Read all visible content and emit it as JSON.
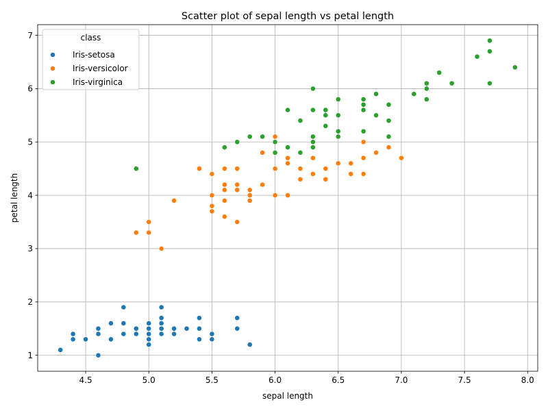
{
  "chart_data": {
    "type": "scatter",
    "title": "Scatter plot of sepal length vs petal length",
    "xlabel": "sepal length",
    "ylabel": "petal length",
    "xlim": [
      4.12,
      8.08
    ],
    "ylim": [
      0.7,
      7.2
    ],
    "xticks": [
      "4.5",
      "5.0",
      "5.5",
      "6.0",
      "6.5",
      "7.0",
      "7.5",
      "8.0"
    ],
    "yticks": [
      "1",
      "2",
      "3",
      "4",
      "5",
      "6",
      "7"
    ],
    "grid": true,
    "legend": {
      "title": "class",
      "location": "top-left"
    },
    "series": [
      {
        "name": "Iris-setosa",
        "color": "#1f77b4",
        "points": [
          [
            4.3,
            1.1
          ],
          [
            4.4,
            1.3
          ],
          [
            4.4,
            1.4
          ],
          [
            4.5,
            1.3
          ],
          [
            4.6,
            1.0
          ],
          [
            4.6,
            1.4
          ],
          [
            4.6,
            1.5
          ],
          [
            4.7,
            1.3
          ],
          [
            4.7,
            1.6
          ],
          [
            4.8,
            1.4
          ],
          [
            4.8,
            1.6
          ],
          [
            4.8,
            1.9
          ],
          [
            4.9,
            1.4
          ],
          [
            4.9,
            1.5
          ],
          [
            5.0,
            1.2
          ],
          [
            5.0,
            1.3
          ],
          [
            5.0,
            1.4
          ],
          [
            5.0,
            1.5
          ],
          [
            5.0,
            1.6
          ],
          [
            5.1,
            1.4
          ],
          [
            5.1,
            1.5
          ],
          [
            5.1,
            1.6
          ],
          [
            5.1,
            1.7
          ],
          [
            5.1,
            1.9
          ],
          [
            5.2,
            1.4
          ],
          [
            5.2,
            1.5
          ],
          [
            5.3,
            1.5
          ],
          [
            5.4,
            1.3
          ],
          [
            5.4,
            1.5
          ],
          [
            5.4,
            1.7
          ],
          [
            5.5,
            1.3
          ],
          [
            5.5,
            1.4
          ],
          [
            5.7,
            1.5
          ],
          [
            5.7,
            1.7
          ],
          [
            5.8,
            1.2
          ]
        ]
      },
      {
        "name": "Iris-versicolor",
        "color": "#ff7f0e",
        "points": [
          [
            4.9,
            3.3
          ],
          [
            5.0,
            3.3
          ],
          [
            5.0,
            3.5
          ],
          [
            5.1,
            3.0
          ],
          [
            5.2,
            3.9
          ],
          [
            5.4,
            4.5
          ],
          [
            5.5,
            3.7
          ],
          [
            5.5,
            3.8
          ],
          [
            5.5,
            4.0
          ],
          [
            5.5,
            4.4
          ],
          [
            5.6,
            3.6
          ],
          [
            5.6,
            3.9
          ],
          [
            5.6,
            4.1
          ],
          [
            5.6,
            4.2
          ],
          [
            5.6,
            4.5
          ],
          [
            5.7,
            3.5
          ],
          [
            5.7,
            4.1
          ],
          [
            5.7,
            4.2
          ],
          [
            5.7,
            4.5
          ],
          [
            5.8,
            3.9
          ],
          [
            5.8,
            4.0
          ],
          [
            5.8,
            4.1
          ],
          [
            5.9,
            4.2
          ],
          [
            5.9,
            4.8
          ],
          [
            6.0,
            4.0
          ],
          [
            6.0,
            4.5
          ],
          [
            6.0,
            5.1
          ],
          [
            6.1,
            4.0
          ],
          [
            6.1,
            4.6
          ],
          [
            6.1,
            4.7
          ],
          [
            6.2,
            4.3
          ],
          [
            6.2,
            4.5
          ],
          [
            6.3,
            4.4
          ],
          [
            6.3,
            4.7
          ],
          [
            6.4,
            4.3
          ],
          [
            6.4,
            4.5
          ],
          [
            6.5,
            4.6
          ],
          [
            6.6,
            4.4
          ],
          [
            6.6,
            4.6
          ],
          [
            6.7,
            4.4
          ],
          [
            6.7,
            4.7
          ],
          [
            6.7,
            5.0
          ],
          [
            6.8,
            4.8
          ],
          [
            6.9,
            4.9
          ],
          [
            7.0,
            4.7
          ]
        ]
      },
      {
        "name": "Iris-virginica",
        "color": "#2ca02c",
        "points": [
          [
            4.9,
            4.5
          ],
          [
            5.6,
            4.9
          ],
          [
            5.7,
            5.0
          ],
          [
            5.8,
            5.1
          ],
          [
            5.9,
            5.1
          ],
          [
            6.0,
            4.8
          ],
          [
            6.0,
            5.0
          ],
          [
            6.1,
            4.9
          ],
          [
            6.1,
            5.6
          ],
          [
            6.2,
            4.8
          ],
          [
            6.2,
            5.4
          ],
          [
            6.3,
            4.9
          ],
          [
            6.3,
            5.0
          ],
          [
            6.3,
            5.1
          ],
          [
            6.3,
            5.6
          ],
          [
            6.3,
            6.0
          ],
          [
            6.4,
            5.3
          ],
          [
            6.4,
            5.5
          ],
          [
            6.4,
            5.6
          ],
          [
            6.5,
            5.1
          ],
          [
            6.5,
            5.2
          ],
          [
            6.5,
            5.5
          ],
          [
            6.5,
            5.8
          ],
          [
            6.7,
            5.2
          ],
          [
            6.7,
            5.6
          ],
          [
            6.7,
            5.7
          ],
          [
            6.7,
            5.8
          ],
          [
            6.8,
            5.5
          ],
          [
            6.8,
            5.9
          ],
          [
            6.9,
            5.1
          ],
          [
            6.9,
            5.4
          ],
          [
            6.9,
            5.7
          ],
          [
            7.1,
            5.9
          ],
          [
            7.2,
            5.8
          ],
          [
            7.2,
            6.0
          ],
          [
            7.2,
            6.1
          ],
          [
            7.3,
            6.3
          ],
          [
            7.4,
            6.1
          ],
          [
            7.6,
            6.6
          ],
          [
            7.7,
            6.1
          ],
          [
            7.7,
            6.7
          ],
          [
            7.7,
            6.9
          ],
          [
            7.9,
            6.4
          ]
        ]
      }
    ]
  }
}
